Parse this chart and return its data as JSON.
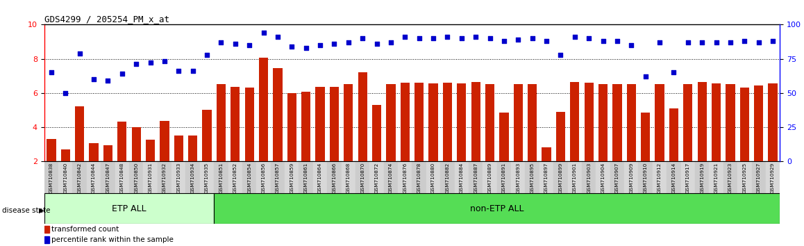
{
  "title": "GDS4299 / 205254_PM_x_at",
  "samples": [
    "GSM710838",
    "GSM710840",
    "GSM710842",
    "GSM710844",
    "GSM710847",
    "GSM710848",
    "GSM710850",
    "GSM710931",
    "GSM710932",
    "GSM710933",
    "GSM710934",
    "GSM710935",
    "GSM710851",
    "GSM710852",
    "GSM710854",
    "GSM710856",
    "GSM710857",
    "GSM710859",
    "GSM710861",
    "GSM710864",
    "GSM710866",
    "GSM710868",
    "GSM710870",
    "GSM710872",
    "GSM710874",
    "GSM710876",
    "GSM710878",
    "GSM710880",
    "GSM710882",
    "GSM710884",
    "GSM710887",
    "GSM710889",
    "GSM710891",
    "GSM710893",
    "GSM710895",
    "GSM710897",
    "GSM710899",
    "GSM710901",
    "GSM710903",
    "GSM710904",
    "GSM710907",
    "GSM710909",
    "GSM710910",
    "GSM710912",
    "GSM710914",
    "GSM710917",
    "GSM710919",
    "GSM710921",
    "GSM710923",
    "GSM710925",
    "GSM710927",
    "GSM710929"
  ],
  "bar_values": [
    3.3,
    2.7,
    5.2,
    3.05,
    2.95,
    4.3,
    4.0,
    3.25,
    4.35,
    3.5,
    3.5,
    5.0,
    6.5,
    6.35,
    6.3,
    8.05,
    7.45,
    6.0,
    6.05,
    6.35,
    6.35,
    6.5,
    7.2,
    5.3,
    6.5,
    6.6,
    6.6,
    6.55,
    6.6,
    6.55,
    6.65,
    6.5,
    4.85,
    6.5,
    6.5,
    2.8,
    4.9,
    6.65,
    6.6,
    6.5,
    6.5,
    6.5,
    4.85,
    6.5,
    5.1,
    6.5,
    6.65,
    6.55,
    6.5,
    6.3,
    6.45,
    6.55
  ],
  "dot_values_pct": [
    65,
    50,
    79,
    60,
    59,
    64,
    71,
    72,
    73,
    66,
    66,
    78,
    87,
    86,
    85,
    94,
    91,
    84,
    83,
    85,
    86,
    87,
    90,
    86,
    87,
    91,
    90,
    90,
    91,
    90,
    91,
    90,
    88,
    89,
    90,
    88,
    78,
    91,
    90,
    88,
    88,
    85,
    62,
    87,
    65,
    87,
    87,
    87,
    87,
    88,
    87,
    88
  ],
  "etp_count": 12,
  "bar_color": "#cc2200",
  "dot_color": "#0000cc",
  "etp_light_color": "#ccffcc",
  "non_etp_color": "#55dd55",
  "ylim_left": [
    2,
    10
  ],
  "ylim_right": [
    0,
    100
  ],
  "yticks_left": [
    2,
    4,
    6,
    8,
    10
  ],
  "yticks_right": [
    0,
    25,
    50,
    75,
    100
  ],
  "grid_values": [
    4,
    6,
    8
  ],
  "disease_label": "disease state",
  "etp_label": "ETP ALL",
  "non_etp_label": "non-ETP ALL",
  "legend_bar": "transformed count",
  "legend_dot": "percentile rank within the sample"
}
